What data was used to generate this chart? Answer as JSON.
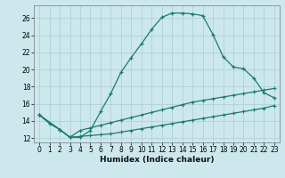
{
  "title": "",
  "xlabel": "Humidex (Indice chaleur)",
  "bg_color": "#cce8ec",
  "line_color": "#1a7a6e",
  "grid_color": "#aacdd4",
  "xlim": [
    -0.5,
    23.5
  ],
  "ylim": [
    11.5,
    27.5
  ],
  "xticks": [
    0,
    1,
    2,
    3,
    4,
    5,
    6,
    7,
    8,
    9,
    10,
    11,
    12,
    13,
    14,
    15,
    16,
    17,
    18,
    19,
    20,
    21,
    22,
    23
  ],
  "yticks": [
    12,
    14,
    16,
    18,
    20,
    22,
    24,
    26
  ],
  "line1_x": [
    0,
    1,
    2,
    3,
    4,
    5,
    6,
    7,
    8,
    9,
    10,
    11,
    12,
    13,
    14,
    15,
    16,
    17,
    18,
    19,
    20,
    21,
    22,
    23
  ],
  "line1_y": [
    14.7,
    13.7,
    13.0,
    12.1,
    12.1,
    12.9,
    15.1,
    17.2,
    19.7,
    21.4,
    23.0,
    24.7,
    26.1,
    26.6,
    26.6,
    26.5,
    26.3,
    24.1,
    21.5,
    20.3,
    20.1,
    19.0,
    17.3,
    16.7
  ],
  "line2_x": [
    0,
    2,
    3,
    4,
    5,
    6,
    7,
    8,
    9,
    10,
    11,
    12,
    13,
    14,
    15,
    16,
    17,
    18,
    19,
    20,
    21,
    22,
    23
  ],
  "line2_y": [
    14.7,
    13.0,
    12.1,
    12.9,
    13.2,
    13.5,
    13.8,
    14.1,
    14.4,
    14.7,
    15.0,
    15.3,
    15.6,
    15.9,
    16.2,
    16.4,
    16.6,
    16.8,
    17.0,
    17.2,
    17.4,
    17.6,
    17.8
  ],
  "line3_x": [
    0,
    2,
    3,
    4,
    5,
    6,
    7,
    8,
    9,
    10,
    11,
    12,
    13,
    14,
    15,
    16,
    17,
    18,
    19,
    20,
    21,
    22,
    23
  ],
  "line3_y": [
    14.7,
    13.0,
    12.1,
    12.2,
    12.3,
    12.4,
    12.5,
    12.7,
    12.9,
    13.1,
    13.3,
    13.5,
    13.7,
    13.9,
    14.1,
    14.3,
    14.5,
    14.7,
    14.9,
    15.1,
    15.3,
    15.5,
    15.8
  ],
  "tick_fontsize": 5.5,
  "xlabel_fontsize": 6.5
}
